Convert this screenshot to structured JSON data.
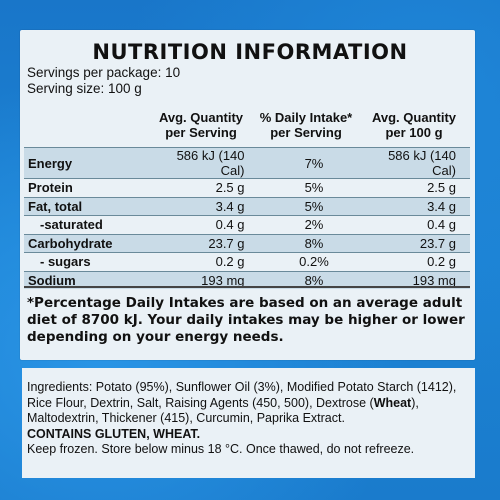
{
  "title": "NUTRITION INFORMATION",
  "servings_per_package": "Servings per package: 10",
  "serving_size": "Serving size: 100 g",
  "headers": {
    "per_serving": [
      "Avg. Quantity",
      "per Serving"
    ],
    "daily_intake": [
      "% Daily Intake*",
      "per Serving"
    ],
    "per_100g": [
      "Avg. Quantity",
      "per 100 g"
    ]
  },
  "rows": [
    {
      "name": "Energy",
      "serving": "586 kJ (140 Cal)",
      "di": "7%",
      "per100": "586 kJ (140 Cal)"
    },
    {
      "name": "Protein",
      "serving": "2.5 g",
      "di": "5%",
      "per100": "2.5 g"
    },
    {
      "name": "Fat, total",
      "serving": "3.4 g",
      "di": "5%",
      "per100": "3.4 g"
    },
    {
      "name": "-saturated",
      "serving": "0.4 g",
      "di": "2%",
      "per100": "0.4 g"
    },
    {
      "name": "Carbohydrate",
      "serving": "23.7 g",
      "di": "8%",
      "per100": "23.7 g"
    },
    {
      "name": "- sugars",
      "serving": "0.2 g",
      "di": "0.2%",
      "per100": "0.2 g"
    },
    {
      "name": "Sodium",
      "serving": "193 mg",
      "di": "8%",
      "per100": "193 mg"
    }
  ],
  "footnote": "*Percentage Daily Intakes are based on an average adult diet of 8700 kJ. Your daily intakes may be higher or lower depending on your energy needs.",
  "ingredients": {
    "part1": "Ingredients: Potato (95%), Sunflower Oil (3%), Modified Potato Starch (1412), Rice Flour, Dextrin, Salt, Raising Agents (450, 500), Dextrose (",
    "wheat": "Wheat",
    "part2": "), Maltodextrin, Thickener (415), Curcumin, Paprika Extract.",
    "contains": "CONTAINS GLUTEN, WHEAT.",
    "storage": "Keep frozen. Store below minus 18 °C. Once thawed, do not refreeze."
  },
  "colors": {
    "package_blue": "#1a7fd0",
    "panel": "#eaf1f6",
    "shaded_row": "#c9dbe7"
  }
}
